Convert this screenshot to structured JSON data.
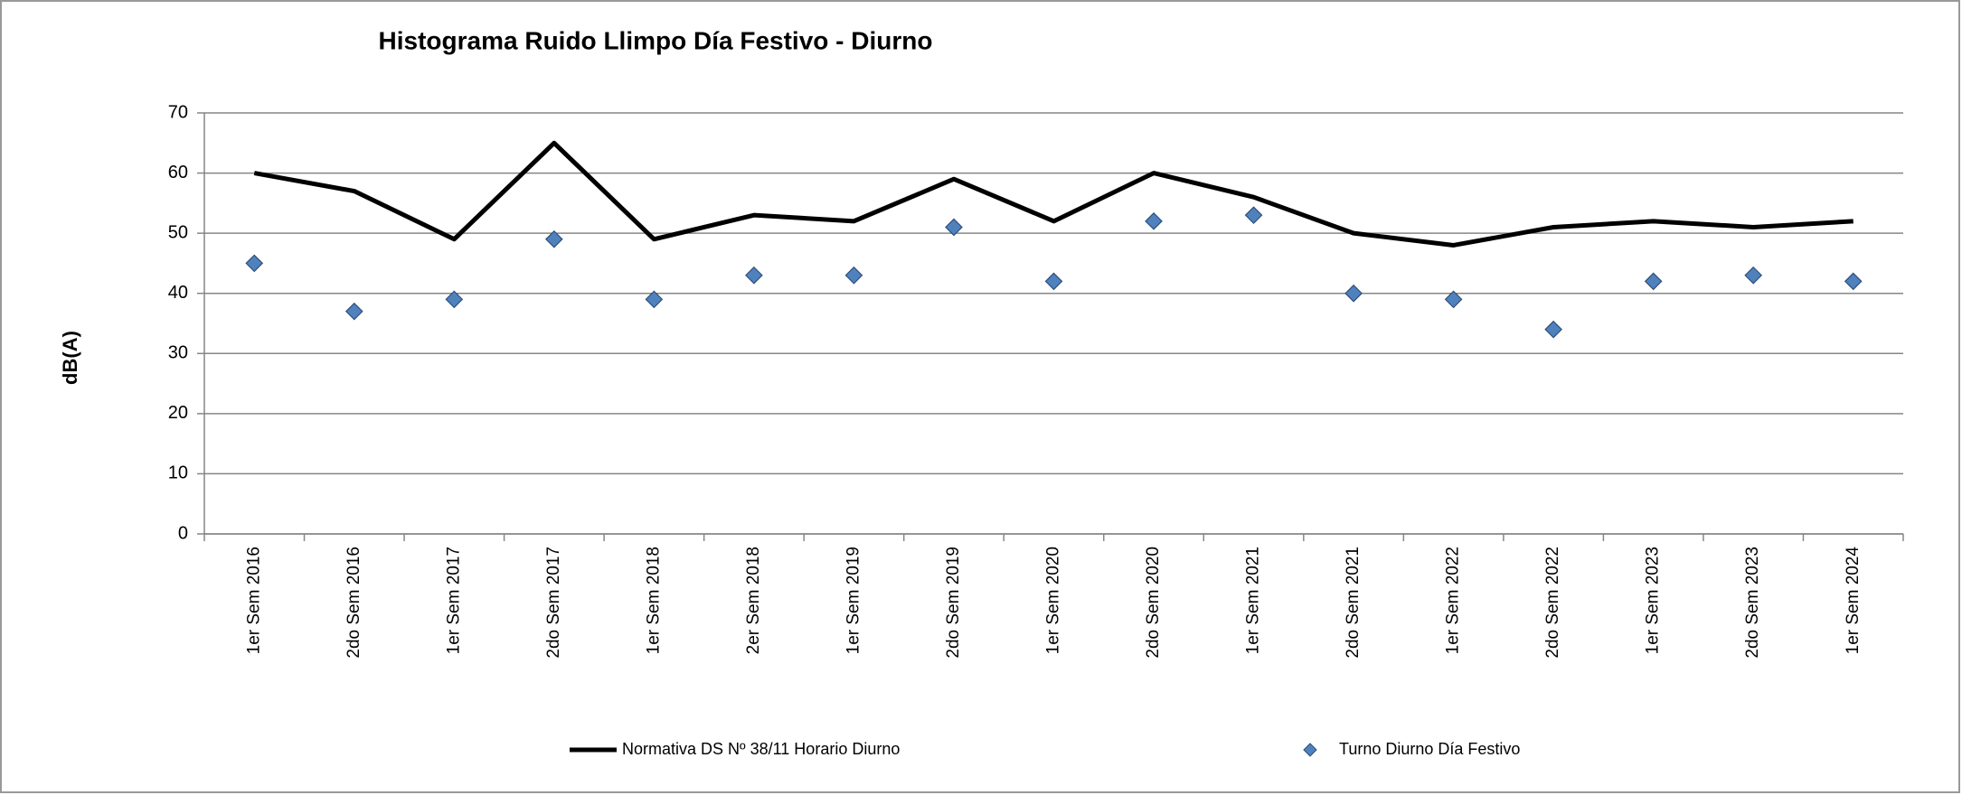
{
  "chart_data": {
    "type": "line",
    "title": "Histograma Ruido Llimpo Día Festivo - Diurno",
    "y_label": "dB(A)",
    "categories": [
      "1er  Sem 2016",
      "2do  Sem 2016",
      "1er  Sem 2017",
      "2do  Sem 2017",
      "1er  Sem 2018",
      "2er  Sem 2018",
      "1er  Sem 2019",
      "2do  Sem 2019",
      "1er  Sem 2020",
      "2do  Sem 2020",
      "1er  Sem 2021",
      "2do  Sem 2021",
      "1er  Sem 2022",
      "2do  Sem 2022",
      "1er  Sem 2023",
      "2do  Sem 2023",
      "1er  Sem 2024"
    ],
    "series": [
      {
        "name": "Normativa DS Nº 38/11  Horario Diurno",
        "type": "line",
        "color": "#000000",
        "values": [
          60,
          57,
          49,
          65,
          49,
          53,
          52,
          59,
          52,
          60,
          56,
          50,
          48,
          51,
          52,
          51,
          52
        ]
      },
      {
        "name": "Turno Diurno Día Festivo",
        "type": "scatter",
        "marker": "diamond",
        "color": "#4f81bd",
        "values": [
          45,
          37,
          39,
          49,
          39,
          43,
          43,
          51,
          42,
          52,
          53,
          40,
          39,
          34,
          42,
          43,
          42
        ]
      }
    ],
    "ylim": [
      0,
      70
    ],
    "yticks": [
      0,
      10,
      20,
      30,
      40,
      50,
      60,
      70
    ],
    "grid": true,
    "legend": "bottom"
  }
}
